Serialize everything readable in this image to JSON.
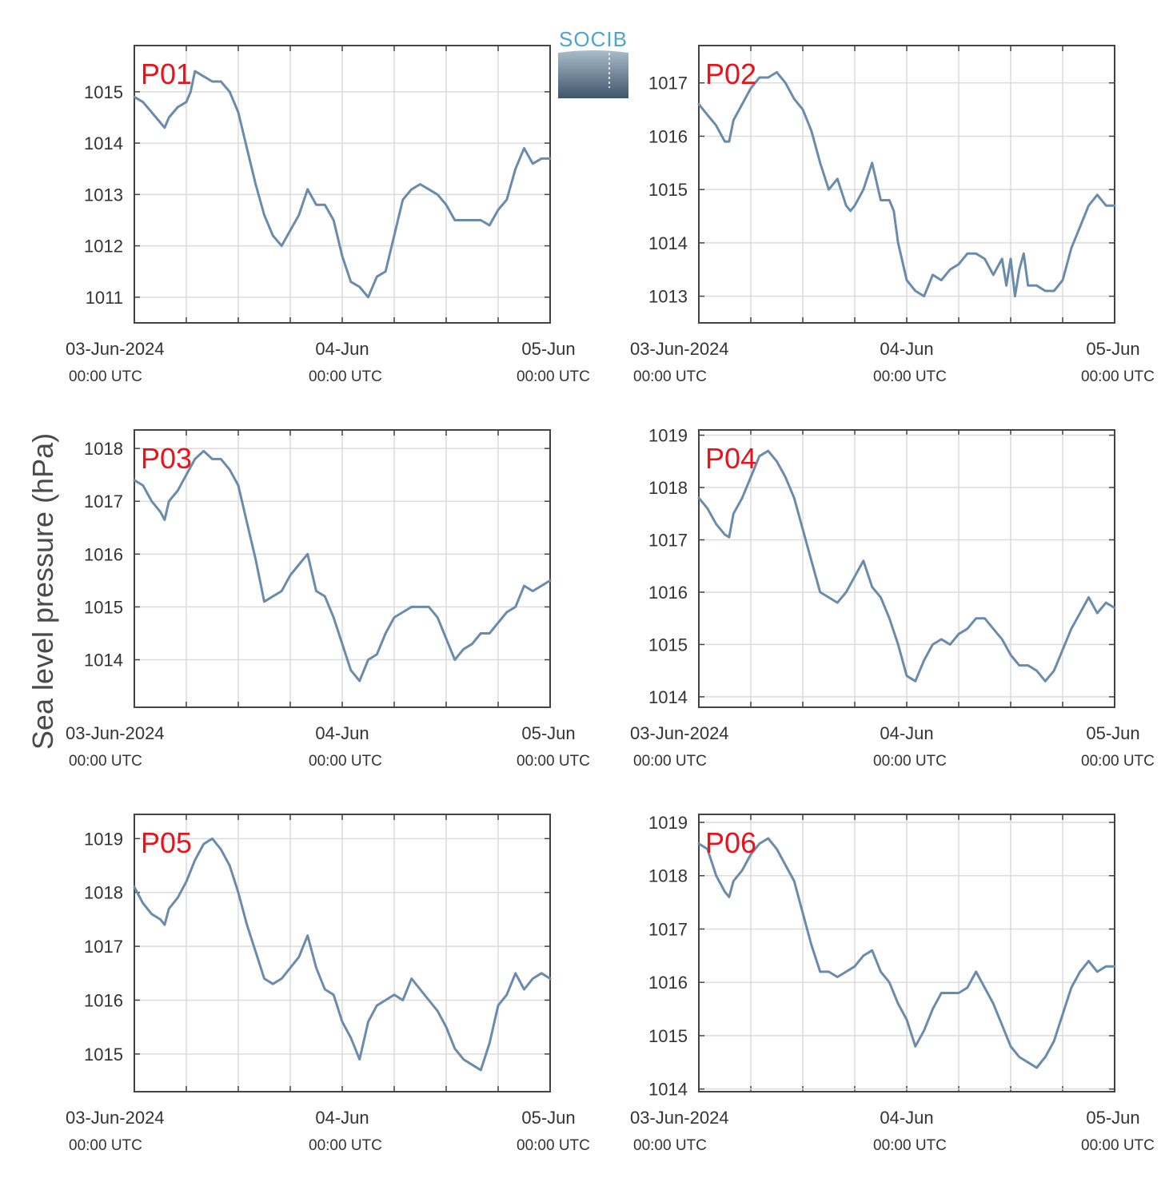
{
  "figure": {
    "ylabel": "Sea level pressure (hPa)",
    "logo_text": "SOCIB",
    "line_color": "#6a8bab",
    "panel_label_color": "#e8141c"
  },
  "chart_data": [
    {
      "type": "line",
      "panel_label": "P01",
      "x_ticks": [
        "03-Jun-2024",
        "04-Jun",
        "05-Jun"
      ],
      "x_subticks": [
        "00:00 UTC",
        "00:00 UTC",
        "00:00 UTC"
      ],
      "xlim": [
        0,
        48
      ],
      "ylim": [
        1010.5,
        1015.9
      ],
      "yticks": [
        1011,
        1012,
        1013,
        1014,
        1015
      ],
      "series": [
        {
          "x": [
            0,
            1,
            2,
            3,
            3.5,
            4,
            5,
            6,
            6.5,
            7,
            8,
            9,
            10,
            11,
            12,
            13,
            14,
            15,
            16,
            17,
            18,
            19,
            20,
            21,
            22,
            23,
            24,
            25,
            26,
            27,
            28,
            29,
            30,
            31,
            32,
            33,
            34,
            35,
            36,
            37,
            38,
            39,
            40,
            41,
            42,
            43,
            44,
            45,
            46,
            47,
            48
          ],
          "y": [
            1014.9,
            1014.8,
            1014.6,
            1014.4,
            1014.3,
            1014.5,
            1014.7,
            1014.8,
            1015.0,
            1015.4,
            1015.3,
            1015.2,
            1015.2,
            1015.0,
            1014.6,
            1013.9,
            1013.2,
            1012.6,
            1012.2,
            1012.0,
            1012.3,
            1012.6,
            1013.1,
            1012.8,
            1012.8,
            1012.5,
            1011.8,
            1011.3,
            1011.2,
            1011.0,
            1011.4,
            1011.5,
            1012.2,
            1012.9,
            1013.1,
            1013.2,
            1013.1,
            1013.0,
            1012.8,
            1012.5,
            1012.5,
            1012.5,
            1012.5,
            1012.4,
            1012.7,
            1012.9,
            1013.5,
            1013.9,
            1013.6,
            1013.7,
            1013.7
          ]
        }
      ]
    },
    {
      "type": "line",
      "panel_label": "P02",
      "x_ticks": [
        "03-Jun-2024",
        "04-Jun",
        "05-Jun"
      ],
      "x_subticks": [
        "00:00 UTC",
        "00:00 UTC",
        "00:00 UTC"
      ],
      "xlim": [
        0,
        48
      ],
      "ylim": [
        1012.5,
        1017.7
      ],
      "yticks": [
        1013,
        1014,
        1015,
        1016,
        1017
      ],
      "series": [
        {
          "x": [
            0,
            1,
            2,
            3,
            3.5,
            4,
            5,
            6,
            7,
            8,
            9,
            10,
            11,
            12,
            13,
            14,
            15,
            16,
            17,
            17.5,
            18,
            19,
            20,
            21,
            22,
            22.5,
            23,
            24,
            25,
            26,
            27,
            28,
            29,
            30,
            31,
            32,
            33,
            34,
            35,
            35.5,
            36,
            36.5,
            37,
            37.5,
            38,
            39,
            40,
            41,
            42,
            43,
            44,
            45,
            46,
            47,
            48
          ],
          "y": [
            1016.6,
            1016.4,
            1016.2,
            1015.9,
            1015.9,
            1016.3,
            1016.6,
            1016.9,
            1017.1,
            1017.1,
            1017.2,
            1017.0,
            1016.7,
            1016.5,
            1016.1,
            1015.5,
            1015.0,
            1015.2,
            1014.7,
            1014.6,
            1014.7,
            1015.0,
            1015.5,
            1014.8,
            1014.8,
            1014.6,
            1014.0,
            1013.3,
            1013.1,
            1013.0,
            1013.4,
            1013.3,
            1013.5,
            1013.6,
            1013.8,
            1013.8,
            1013.7,
            1013.4,
            1013.7,
            1013.2,
            1013.7,
            1013.0,
            1013.5,
            1013.8,
            1013.2,
            1013.2,
            1013.1,
            1013.1,
            1013.3,
            1013.9,
            1014.3,
            1014.7,
            1014.9,
            1014.7,
            1014.7
          ]
        }
      ]
    },
    {
      "type": "line",
      "panel_label": "P03",
      "x_ticks": [
        "03-Jun-2024",
        "04-Jun",
        "05-Jun"
      ],
      "x_subticks": [
        "00:00 UTC",
        "00:00 UTC",
        "00:00 UTC"
      ],
      "xlim": [
        0,
        48
      ],
      "ylim": [
        1013.1,
        1018.35
      ],
      "yticks": [
        1014,
        1015,
        1016,
        1017,
        1018
      ],
      "series": [
        {
          "x": [
            0,
            1,
            2,
            3,
            3.5,
            4,
            5,
            6,
            7,
            8,
            9,
            10,
            11,
            12,
            13,
            14,
            15,
            16,
            17,
            18,
            19,
            20,
            21,
            22,
            23,
            24,
            25,
            26,
            27,
            28,
            29,
            30,
            31,
            32,
            33,
            34,
            35,
            36,
            37,
            38,
            39,
            40,
            41,
            42,
            43,
            44,
            45,
            46,
            47,
            48
          ],
          "y": [
            1017.4,
            1017.3,
            1017.0,
            1016.8,
            1016.65,
            1017.0,
            1017.2,
            1017.5,
            1017.8,
            1017.95,
            1017.8,
            1017.8,
            1017.6,
            1017.3,
            1016.6,
            1015.9,
            1015.1,
            1015.2,
            1015.3,
            1015.6,
            1015.8,
            1016.0,
            1015.3,
            1015.2,
            1014.8,
            1014.3,
            1013.8,
            1013.6,
            1014.0,
            1014.1,
            1014.5,
            1014.8,
            1014.9,
            1015.0,
            1015.0,
            1015.0,
            1014.8,
            1014.4,
            1014.0,
            1014.2,
            1014.3,
            1014.5,
            1014.5,
            1014.7,
            1014.9,
            1015.0,
            1015.4,
            1015.3,
            1015.4,
            1015.5
          ]
        }
      ]
    },
    {
      "type": "line",
      "panel_label": "P04",
      "x_ticks": [
        "03-Jun-2024",
        "04-Jun",
        "05-Jun"
      ],
      "x_subticks": [
        "00:00 UTC",
        "00:00 UTC",
        "00:00 UTC"
      ],
      "xlim": [
        0,
        48
      ],
      "ylim": [
        1013.8,
        1019.1
      ],
      "yticks": [
        1014,
        1015,
        1016,
        1017,
        1018,
        1019
      ],
      "series": [
        {
          "x": [
            0,
            1,
            2,
            3,
            3.5,
            4,
            5,
            6,
            7,
            8,
            9,
            10,
            11,
            12,
            13,
            14,
            15,
            16,
            17,
            18,
            19,
            20,
            21,
            22,
            23,
            24,
            25,
            26,
            27,
            28,
            29,
            30,
            31,
            32,
            33,
            34,
            35,
            36,
            37,
            38,
            39,
            40,
            41,
            42,
            43,
            44,
            45,
            46,
            47,
            48
          ],
          "y": [
            1017.8,
            1017.6,
            1017.3,
            1017.1,
            1017.05,
            1017.5,
            1017.8,
            1018.2,
            1018.6,
            1018.7,
            1018.5,
            1018.2,
            1017.8,
            1017.2,
            1016.6,
            1016.0,
            1015.9,
            1015.8,
            1016.0,
            1016.3,
            1016.6,
            1016.1,
            1015.9,
            1015.5,
            1015.0,
            1014.4,
            1014.3,
            1014.7,
            1015.0,
            1015.1,
            1015.0,
            1015.2,
            1015.3,
            1015.5,
            1015.5,
            1015.3,
            1015.1,
            1014.8,
            1014.6,
            1014.6,
            1014.5,
            1014.3,
            1014.5,
            1014.9,
            1015.3,
            1015.6,
            1015.9,
            1015.6,
            1015.8,
            1015.7
          ]
        }
      ]
    },
    {
      "type": "line",
      "panel_label": "P05",
      "x_ticks": [
        "03-Jun-2024",
        "04-Jun",
        "05-Jun"
      ],
      "x_subticks": [
        "00:00 UTC",
        "00:00 UTC",
        "00:00 UTC"
      ],
      "xlim": [
        0,
        48
      ],
      "ylim": [
        1014.3,
        1019.45
      ],
      "yticks": [
        1015,
        1016,
        1017,
        1018,
        1019
      ],
      "series": [
        {
          "x": [
            0,
            1,
            2,
            3,
            3.5,
            4,
            5,
            6,
            7,
            8,
            9,
            10,
            11,
            12,
            13,
            14,
            15,
            16,
            17,
            18,
            19,
            20,
            21,
            22,
            23,
            24,
            25,
            26,
            27,
            28,
            29,
            30,
            31,
            32,
            33,
            34,
            35,
            36,
            37,
            38,
            39,
            40,
            41,
            42,
            43,
            44,
            45,
            46,
            47,
            48
          ],
          "y": [
            1018.1,
            1017.8,
            1017.6,
            1017.5,
            1017.4,
            1017.7,
            1017.9,
            1018.2,
            1018.6,
            1018.9,
            1019.0,
            1018.8,
            1018.5,
            1018.0,
            1017.4,
            1016.9,
            1016.4,
            1016.3,
            1016.4,
            1016.6,
            1016.8,
            1017.2,
            1016.6,
            1016.2,
            1016.1,
            1015.6,
            1015.3,
            1014.9,
            1015.6,
            1015.9,
            1016.0,
            1016.1,
            1016.0,
            1016.4,
            1016.2,
            1016.0,
            1015.8,
            1015.5,
            1015.1,
            1014.9,
            1014.8,
            1014.7,
            1015.2,
            1015.9,
            1016.1,
            1016.5,
            1016.2,
            1016.4,
            1016.5,
            1016.4
          ]
        }
      ]
    },
    {
      "type": "line",
      "panel_label": "P06",
      "x_ticks": [
        "03-Jun-2024",
        "04-Jun",
        "05-Jun"
      ],
      "x_subticks": [
        "00:00 UTC",
        "00:00 UTC",
        "00:00 UTC"
      ],
      "xlim": [
        0,
        48
      ],
      "ylim": [
        1013.95,
        1019.15
      ],
      "yticks": [
        1014,
        1015,
        1016,
        1017,
        1018,
        1019
      ],
      "series": [
        {
          "x": [
            0,
            1,
            2,
            3,
            3.5,
            4,
            5,
            6,
            7,
            8,
            9,
            10,
            11,
            12,
            13,
            14,
            15,
            16,
            17,
            18,
            19,
            20,
            21,
            22,
            23,
            24,
            25,
            26,
            27,
            28,
            29,
            30,
            31,
            32,
            33,
            34,
            35,
            36,
            37,
            38,
            39,
            40,
            41,
            42,
            43,
            44,
            45,
            46,
            47,
            48
          ],
          "y": [
            1018.6,
            1018.5,
            1018.0,
            1017.7,
            1017.6,
            1017.9,
            1018.1,
            1018.4,
            1018.6,
            1018.7,
            1018.5,
            1018.2,
            1017.9,
            1017.3,
            1016.7,
            1016.2,
            1016.2,
            1016.1,
            1016.2,
            1016.3,
            1016.5,
            1016.6,
            1016.2,
            1016.0,
            1015.6,
            1015.3,
            1014.8,
            1015.1,
            1015.5,
            1015.8,
            1015.8,
            1015.8,
            1015.9,
            1016.2,
            1015.9,
            1015.6,
            1015.2,
            1014.8,
            1014.6,
            1014.5,
            1014.4,
            1014.6,
            1014.9,
            1015.4,
            1015.9,
            1016.2,
            1016.4,
            1016.2,
            1016.3,
            1016.3
          ]
        }
      ]
    }
  ]
}
